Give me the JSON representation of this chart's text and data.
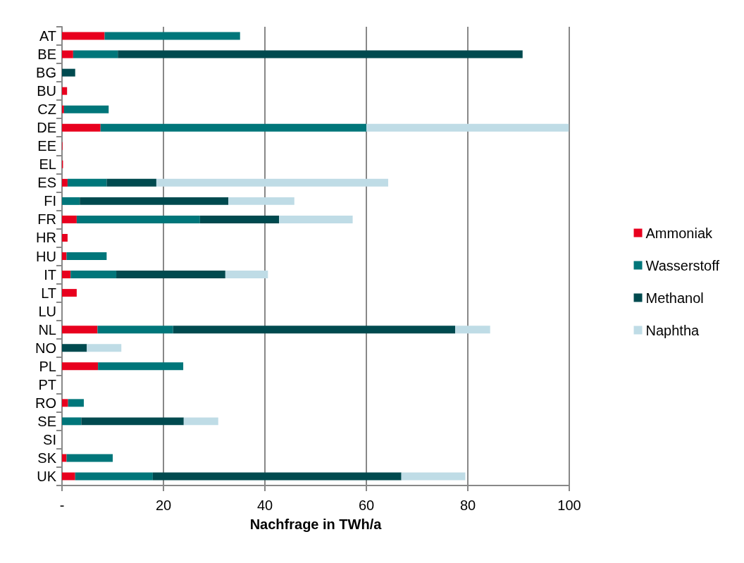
{
  "chart_data": {
    "type": "bar",
    "orientation": "horizontal",
    "stacked": true,
    "xlabel": "Nachfrage in TWh/a",
    "categories": [
      "AT",
      "BE",
      "BG",
      "BU",
      "CZ",
      "DE",
      "EE",
      "EL",
      "ES",
      "FI",
      "FR",
      "HR",
      "HU",
      "IT",
      "LT",
      "LU",
      "NL",
      "NO",
      "PL",
      "PT",
      "RO",
      "SE",
      "SI",
      "SK",
      "UK"
    ],
    "series": [
      {
        "name": "Ammoniak",
        "color": "#e8001e",
        "values": [
          8.4,
          2.2,
          null,
          1.0,
          0.4,
          7.6,
          0.1,
          0.2,
          1.1,
          null,
          2.9,
          1.1,
          0.9,
          1.7,
          2.9,
          null,
          7.0,
          null,
          7.1,
          null,
          1.2,
          null,
          null,
          0.9,
          2.6
        ]
      },
      {
        "name": "Wasserstoff",
        "color": "#00767a",
        "values": [
          26.7,
          8.8,
          null,
          null,
          8.8,
          52.4,
          null,
          null,
          7.7,
          3.5,
          24.3,
          null,
          7.9,
          9.0,
          null,
          null,
          14.9,
          null,
          16.8,
          null,
          3.1,
          3.8,
          null,
          9.1,
          15.3
        ]
      },
      {
        "name": "Methanol",
        "color": "#004a4f",
        "values": [
          null,
          79.8,
          2.6,
          null,
          null,
          null,
          null,
          null,
          9.8,
          29.3,
          15.6,
          null,
          null,
          21.5,
          null,
          null,
          55.6,
          4.9,
          null,
          null,
          null,
          20.2,
          null,
          null,
          49.0
        ]
      },
      {
        "name": "Naphtha",
        "color": "#bfdce6",
        "values": [
          null,
          null,
          null,
          null,
          null,
          39.9,
          null,
          null,
          45.7,
          13.0,
          14.5,
          null,
          null,
          8.4,
          null,
          null,
          6.9,
          6.8,
          null,
          null,
          null,
          6.8,
          null,
          null,
          12.6
        ]
      }
    ],
    "xlim": [
      0,
      100
    ],
    "xticks": [
      {
        "value": 0,
        "label": "-"
      },
      20,
      40,
      60,
      80,
      100
    ],
    "grid": "x",
    "legend": "right"
  }
}
